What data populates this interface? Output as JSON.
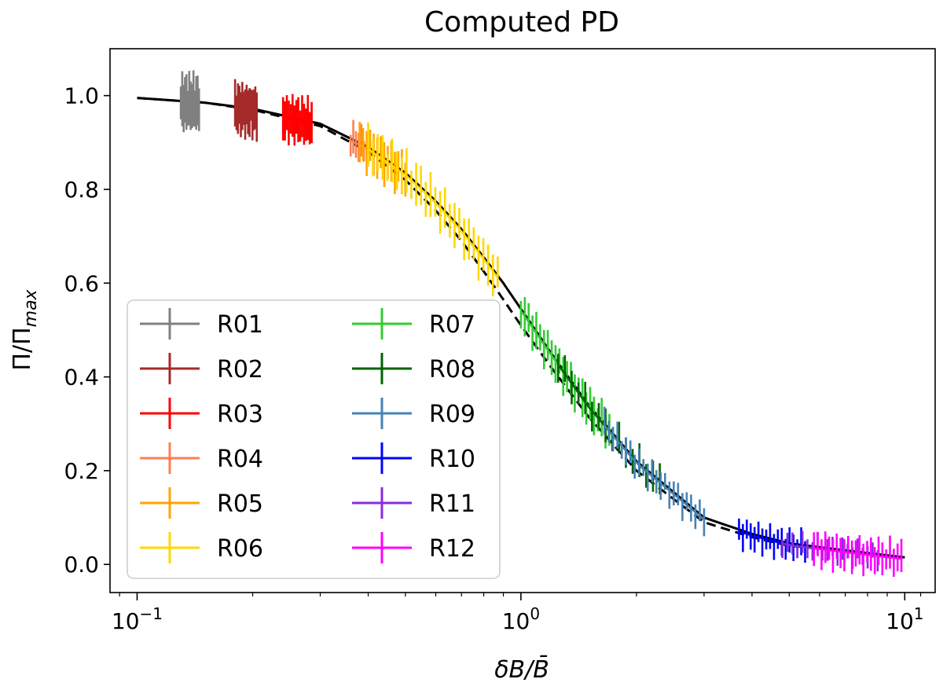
{
  "chart_data": {
    "type": "scatter",
    "title": "Computed PD",
    "xlabel": "δB/B̄",
    "ylabel": "Π/Π_max",
    "xscale": "log",
    "xlim": [
      0.085,
      12
    ],
    "ylim": [
      -0.06,
      1.1
    ],
    "x_ticks": [
      {
        "value": 0.1,
        "base": "10",
        "exp": "−1"
      },
      {
        "value": 1,
        "base": "10",
        "exp": "0"
      },
      {
        "value": 10,
        "base": "10",
        "exp": "1"
      }
    ],
    "y_ticks": [
      {
        "value": 0.0,
        "label": "0.0"
      },
      {
        "value": 0.2,
        "label": "0.2"
      },
      {
        "value": 0.4,
        "label": "0.4"
      },
      {
        "value": 0.6,
        "label": "0.6"
      },
      {
        "value": 0.8,
        "label": "0.8"
      },
      {
        "value": 1.0,
        "label": "1.0"
      }
    ],
    "legend_position": "lower-left",
    "legend_columns": 2,
    "model_curves": [
      {
        "name": "solid",
        "style": "solid",
        "color": "#000000",
        "x": [
          0.1,
          0.15,
          0.2,
          0.3,
          0.4,
          0.5,
          0.6,
          0.7,
          0.8,
          0.9,
          1.0,
          1.2,
          1.5,
          2.0,
          3.0,
          4.0,
          5.0,
          7.0,
          10.0
        ],
        "y": [
          0.995,
          0.985,
          0.972,
          0.94,
          0.89,
          0.835,
          0.775,
          0.715,
          0.655,
          0.6,
          0.545,
          0.45,
          0.34,
          0.22,
          0.1,
          0.065,
          0.045,
          0.03,
          0.015
        ]
      },
      {
        "name": "dashed",
        "style": "dashed",
        "color": "#000000",
        "x": [
          0.1,
          0.15,
          0.2,
          0.3,
          0.4,
          0.5,
          0.6,
          0.7,
          0.8,
          0.9,
          1.0,
          1.2,
          1.5,
          2.0,
          3.0,
          4.0,
          5.0,
          7.0,
          10.0
        ],
        "y": [
          0.995,
          0.985,
          0.97,
          0.935,
          0.88,
          0.82,
          0.755,
          0.69,
          0.625,
          0.565,
          0.51,
          0.42,
          0.315,
          0.2,
          0.09,
          0.058,
          0.04,
          0.028,
          0.015
        ]
      }
    ],
    "series": [
      {
        "name": "R01",
        "color": "#808080",
        "x_range": [
          0.13,
          0.145
        ],
        "n": 14,
        "err": 0.05
      },
      {
        "name": "R02",
        "color": "#a52a2a",
        "x_range": [
          0.18,
          0.205
        ],
        "n": 16,
        "err": 0.045
      },
      {
        "name": "R03",
        "color": "#ff0000",
        "x_range": [
          0.24,
          0.285
        ],
        "n": 16,
        "err": 0.04
      },
      {
        "name": "R04",
        "color": "#ff7f50",
        "x_range": [
          0.36,
          0.39
        ],
        "n": 6,
        "err": 0.03
      },
      {
        "name": "R05",
        "color": "#ffa500",
        "x_range": [
          0.38,
          0.5
        ],
        "n": 14,
        "err": 0.04
      },
      {
        "name": "R06",
        "color": "#ffd700",
        "x_range": [
          0.4,
          0.87
        ],
        "n": 28,
        "err": 0.04
      },
      {
        "name": "R07",
        "color": "#32cd32",
        "x_range": [
          1.0,
          1.7
        ],
        "n": 24,
        "err": 0.035
      },
      {
        "name": "R08",
        "color": "#006400",
        "x_range": [
          1.25,
          2.3
        ],
        "n": 16,
        "err": 0.03
      },
      {
        "name": "R09",
        "color": "#4682b4",
        "x_range": [
          1.65,
          3.0
        ],
        "n": 24,
        "err": 0.025
      },
      {
        "name": "R10",
        "color": "#0000ff",
        "x_range": [
          3.7,
          5.5
        ],
        "n": 18,
        "err": 0.025
      },
      {
        "name": "R11",
        "color": "#8a2be2",
        "x_range": [
          4.8,
          8.5
        ],
        "n": 20,
        "err": 0.02
      },
      {
        "name": "R12",
        "color": "#ff00ff",
        "x_range": [
          5.8,
          9.8
        ],
        "n": 24,
        "err": 0.03
      }
    ]
  }
}
